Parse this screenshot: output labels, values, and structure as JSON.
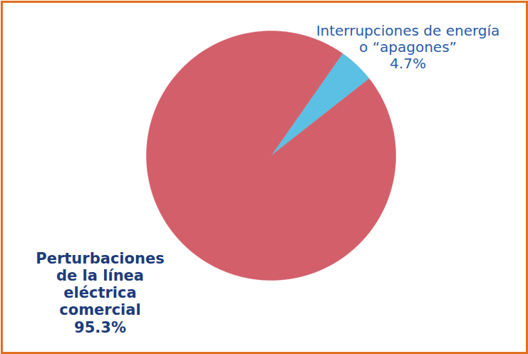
{
  "chart_data": {
    "type": "pie",
    "categories": [
      "Interrupciones de energía o “apagones”",
      "Perturbaciones de la línea eléctrica comercial"
    ],
    "values": [
      4.7,
      95.3
    ],
    "value_labels": [
      "4.7%",
      "95.3%"
    ],
    "colors": [
      "#5bc0e3",
      "#d35f6b"
    ],
    "data_labels": true
  }
}
